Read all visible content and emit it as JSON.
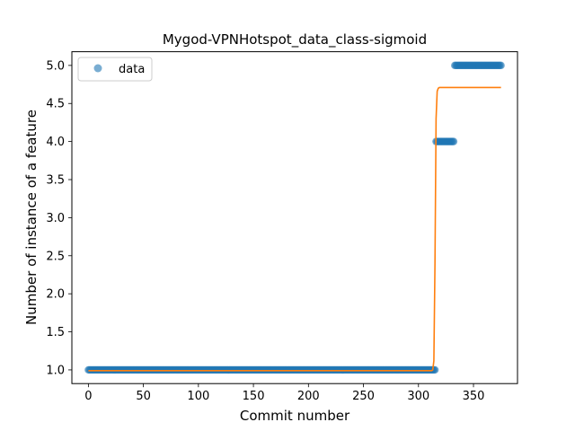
{
  "chart_data": {
    "type": "scatter",
    "title": "Mygod-VPNHotspot_data_class-sigmoid",
    "xlabel": "Commit number",
    "ylabel": "Number of instance of a feature",
    "xlim": [
      -15,
      390
    ],
    "ylim": [
      0.82,
      5.18
    ],
    "xticks": [
      0,
      50,
      100,
      150,
      200,
      250,
      300,
      350
    ],
    "yticks": [
      1.0,
      1.5,
      2.0,
      2.5,
      3.0,
      3.5,
      4.0,
      4.5,
      5.0
    ],
    "xtick_labels": [
      "0",
      "50",
      "100",
      "150",
      "200",
      "250",
      "300",
      "350"
    ],
    "ytick_labels": [
      "1.0",
      "1.5",
      "2.0",
      "2.5",
      "3.0",
      "3.5",
      "4.0",
      "4.5",
      "5.0"
    ],
    "legend": {
      "position": "top-left",
      "entries": [
        "data"
      ]
    },
    "grid": false,
    "colors": {
      "data": "#1f77b4",
      "fit": "#ff7f0e"
    },
    "series": [
      {
        "name": "data",
        "kind": "scatter",
        "segments": [
          {
            "x_start": 0,
            "x_end": 315,
            "y": 1.0
          },
          {
            "x_start": 316,
            "x_end": 332,
            "y": 4.0
          },
          {
            "x_start": 333,
            "x_end": 375,
            "y": 5.0
          }
        ]
      },
      {
        "kind": "line",
        "x": [
          0,
          312,
          313,
          314,
          315,
          316,
          317,
          318,
          319,
          320,
          375
        ],
        "y": [
          0.99,
          0.99,
          1.0,
          1.12,
          2.4,
          4.3,
          4.66,
          4.7,
          4.71,
          4.71,
          4.71
        ]
      }
    ]
  }
}
